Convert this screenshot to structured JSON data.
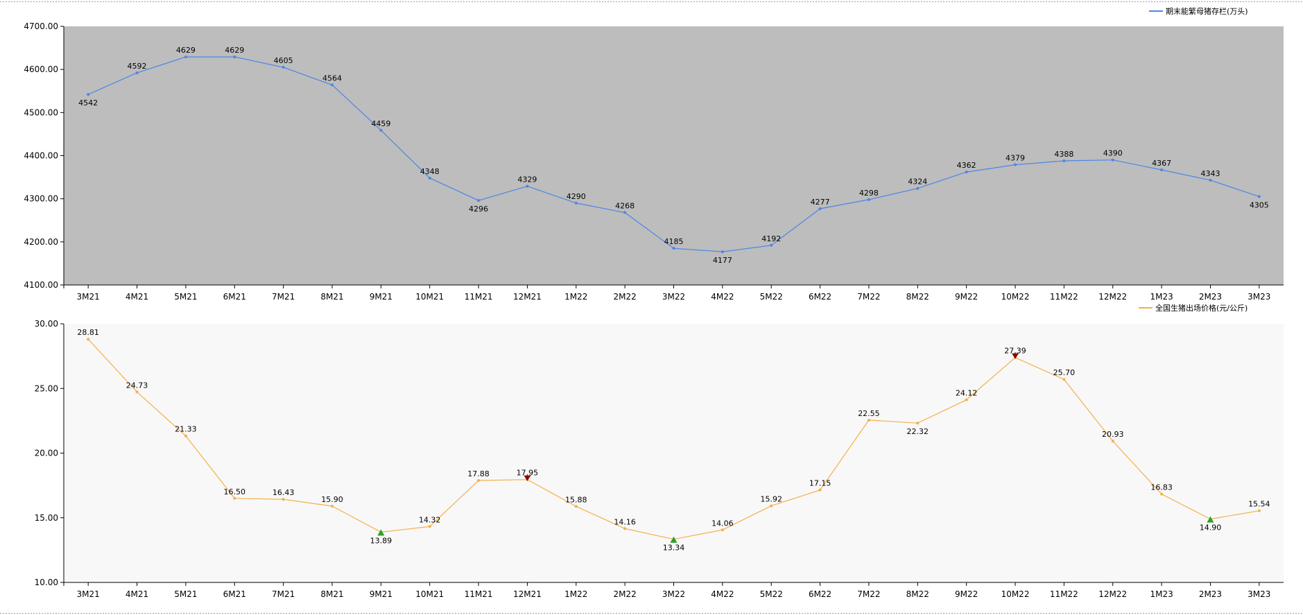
{
  "chart_data": [
    {
      "type": "line",
      "categories": [
        "3M21",
        "4M21",
        "5M21",
        "6M21",
        "7M21",
        "8M21",
        "9M21",
        "10M21",
        "11M21",
        "12M21",
        "1M22",
        "2M22",
        "3M22",
        "4M22",
        "5M22",
        "6M22",
        "7M22",
        "8M22",
        "9M22",
        "10M22",
        "11M22",
        "12M22",
        "1M23",
        "2M23",
        "3M23"
      ],
      "series": [
        {
          "name": "期末能繁母猪存栏(万头)",
          "values": [
            4542,
            4592,
            4629,
            4629,
            4605,
            4564,
            4459,
            4348,
            4296,
            4329,
            4290,
            4268,
            4185,
            4177,
            4192,
            4277,
            4298,
            4324,
            4362,
            4379,
            4388,
            4390,
            4367,
            4343,
            4305
          ],
          "value_labels": [
            "4542",
            "4592",
            "4629",
            "4629",
            "4605",
            "4564",
            "4459",
            "4348",
            "4296",
            "4329",
            "4290",
            "4268",
            "4185",
            "4177",
            "4192",
            "4277",
            "4298",
            "4324",
            "4362",
            "4379",
            "4388",
            "4390",
            "4367",
            "4343",
            "4305"
          ],
          "label_below": [
            0,
            8,
            13,
            24
          ],
          "color": "#4a86e8"
        }
      ],
      "ylim": [
        4100,
        4700
      ],
      "yticks": [
        "4100.00",
        "4200.00",
        "4300.00",
        "4400.00",
        "4500.00",
        "4600.00",
        "4700.00"
      ],
      "plot_background": "#bdbdbd",
      "grid": false,
      "legend": "top-right"
    },
    {
      "type": "line",
      "categories": [
        "3M21",
        "4M21",
        "5M21",
        "6M21",
        "7M21",
        "8M21",
        "9M21",
        "10M21",
        "11M21",
        "12M21",
        "1M22",
        "2M22",
        "3M22",
        "4M22",
        "5M22",
        "6M22",
        "7M22",
        "8M22",
        "9M22",
        "10M22",
        "11M22",
        "12M22",
        "1M23",
        "2M23",
        "3M23"
      ],
      "series": [
        {
          "name": "全国生猪出场价格(元/公斤)",
          "values": [
            28.81,
            24.73,
            21.33,
            16.5,
            16.43,
            15.9,
            13.89,
            14.32,
            17.88,
            17.95,
            15.88,
            14.16,
            13.34,
            14.06,
            15.92,
            17.15,
            22.55,
            22.32,
            24.12,
            27.39,
            25.7,
            20.93,
            16.83,
            14.9,
            15.54
          ],
          "value_labels": [
            "28.81",
            "24.73",
            "21.33",
            "16.50",
            "16.43",
            "15.90",
            "13.89",
            "14.32",
            "17.88",
            "17.95",
            "15.88",
            "14.16",
            "13.34",
            "14.06",
            "15.92",
            "17.15",
            "22.55",
            "22.32",
            "24.12",
            "27.39",
            "25.70",
            "20.93",
            "16.83",
            "14.90",
            "15.54"
          ],
          "label_below": [
            6,
            12,
            17,
            23
          ],
          "color": "#f4b04a"
        }
      ],
      "markers": {
        "peaks": [
          9,
          19
        ],
        "troughs": [
          6,
          12,
          23
        ],
        "peak_color": "#8b0000",
        "trough_color": "#2ca02c"
      },
      "ylim": [
        10,
        30
      ],
      "yticks": [
        "10.00",
        "15.00",
        "20.00",
        "25.00",
        "30.00"
      ],
      "plot_background": "#f8f8f8",
      "grid": false,
      "legend": "top-right"
    }
  ]
}
